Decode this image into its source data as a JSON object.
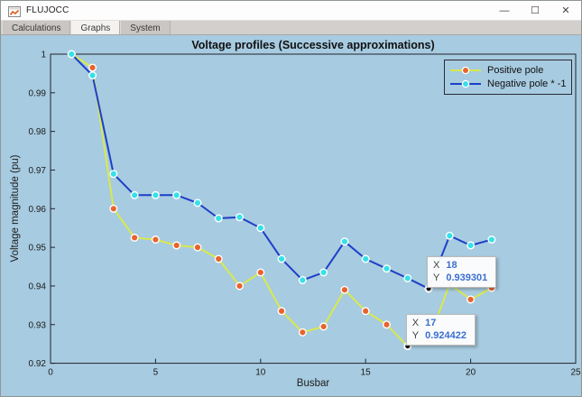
{
  "window": {
    "title": "FLUJOCC",
    "minimize_glyph": "—",
    "maximize_glyph": "☐",
    "close_glyph": "✕"
  },
  "tabs": [
    {
      "label": "Calculations",
      "active": false
    },
    {
      "label": "Graphs",
      "active": true
    },
    {
      "label": "System",
      "active": false
    }
  ],
  "colors": {
    "figure_background": "#a7cbe0",
    "axis": "#23232e",
    "datatip_value": "#3a6fd0",
    "datatip_point": "#111111"
  },
  "chart_data": {
    "type": "line",
    "title": "Voltage profiles (Successive approximations)",
    "xlabel": "Busbar",
    "ylabel": "Voltage magnitude (pu)",
    "xlim": [
      0,
      25
    ],
    "ylim": [
      0.92,
      1.0
    ],
    "grid": false,
    "legend_position": "northeast",
    "xticks": [
      0,
      5,
      10,
      15,
      20,
      25
    ],
    "xtick_labels": [
      "0",
      "5",
      "10",
      "15",
      "20",
      "25"
    ],
    "yticks": [
      0.92,
      0.93,
      0.94,
      0.95,
      0.96,
      0.97,
      0.98,
      0.99,
      1.0
    ],
    "ytick_labels": [
      "0.92",
      "0.93",
      "0.94",
      "0.95",
      "0.96",
      "0.97",
      "0.98",
      "0.99",
      "1"
    ],
    "x": [
      1,
      2,
      3,
      4,
      5,
      6,
      7,
      8,
      9,
      10,
      11,
      12,
      13,
      14,
      15,
      16,
      17,
      18,
      19,
      20,
      21
    ],
    "series": [
      {
        "name": "Positive pole",
        "line_color": "#d9e94c",
        "marker_color": "#e8632d",
        "values": [
          1.0,
          0.9965,
          0.96,
          0.9525,
          0.952,
          0.9505,
          0.95,
          0.947,
          0.94,
          0.9435,
          0.9335,
          0.928,
          0.9295,
          0.939,
          0.9335,
          0.93,
          0.924422,
          0.926,
          0.9405,
          0.9365,
          0.9395
        ]
      },
      {
        "name": "Negative pole * -1",
        "line_color": "#1e3fc8",
        "marker_color": "#35e1e8",
        "values": [
          1.0,
          0.9945,
          0.969,
          0.9635,
          0.9635,
          0.9635,
          0.9615,
          0.9575,
          0.9578,
          0.955,
          0.947,
          0.9415,
          0.9435,
          0.9515,
          0.947,
          0.9445,
          0.942,
          0.939301,
          0.953,
          0.9505,
          0.952
        ]
      }
    ],
    "datatips": [
      {
        "series": 1,
        "x": 18,
        "y": 0.939301,
        "x_label": "X",
        "x_text": "18",
        "y_label": "Y",
        "y_text": "0.939301"
      },
      {
        "series": 0,
        "x": 17,
        "y": 0.924422,
        "x_label": "X",
        "x_text": "17",
        "y_label": "Y",
        "y_text": "0.924422"
      }
    ]
  }
}
